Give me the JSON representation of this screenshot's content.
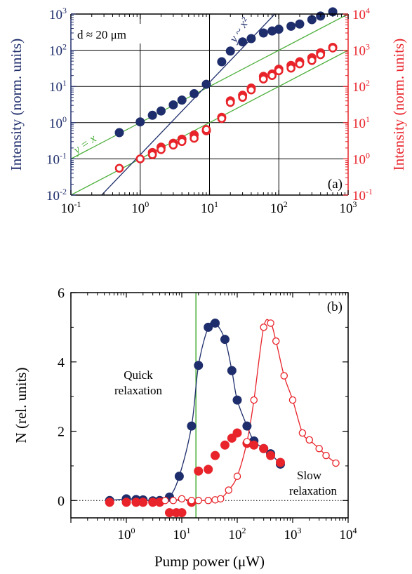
{
  "colors": {
    "navy": "#1e2d6b",
    "red": "#e8232a",
    "green": "#4caf3a",
    "axis_black": "#000000"
  },
  "chart_data": [
    {
      "id": "a",
      "type": "scatter",
      "panel_label": "(a)",
      "annotation": "d ≈ 20 μm",
      "x_scale": "log",
      "xlim": [
        0.1,
        1000
      ],
      "x_tick_labels": [
        [
          "10",
          "-1"
        ],
        [
          "10",
          "0"
        ],
        [
          "10",
          "1"
        ],
        [
          "10",
          "2"
        ],
        [
          "10",
          "3"
        ]
      ],
      "y_left": {
        "label": "Intensity (norm. units)",
        "scale": "log",
        "lim": [
          0.01,
          1000
        ],
        "tick_labels": [
          [
            "10",
            "-2"
          ],
          [
            "10",
            "-1"
          ],
          [
            "10",
            "0"
          ],
          [
            "10",
            "1"
          ],
          [
            "10",
            "2"
          ],
          [
            "10",
            "3"
          ]
        ],
        "color": "navy"
      },
      "y_right": {
        "label": "Intensity (norm. units)",
        "scale": "log",
        "lim": [
          0.1,
          10000
        ],
        "tick_labels": [
          [
            "10",
            "-1"
          ],
          [
            "10",
            "0"
          ],
          [
            "10",
            "1"
          ],
          [
            "10",
            "2"
          ],
          [
            "10",
            "3"
          ],
          [
            "10",
            "4"
          ]
        ],
        "color": "red"
      },
      "grid": true,
      "series": [
        {
          "axis": "left",
          "marker": "filled",
          "color": "navy",
          "x": [
            0.5,
            1,
            1.5,
            2,
            3,
            4,
            6,
            9,
            15,
            20,
            30,
            40,
            60,
            80,
            100,
            150,
            200,
            300,
            400,
            600
          ],
          "y": [
            0.53,
            1.05,
            1.6,
            2.1,
            3.1,
            4.2,
            6.3,
            11.5,
            48,
            95,
            170,
            210,
            300,
            340,
            380,
            460,
            530,
            700,
            880,
            1150
          ]
        },
        {
          "axis": "right",
          "marker": "filled",
          "color": "red",
          "x": [
            1.5,
            2,
            3,
            4,
            6,
            9,
            15,
            20,
            30,
            40,
            60,
            80,
            100,
            150,
            200,
            300,
            400,
            600
          ],
          "y": [
            1.5,
            2.1,
            2.7,
            3.5,
            4.6,
            6.0,
            14,
            40,
            57,
            90,
            190,
            220,
            300,
            380,
            480,
            620,
            850,
            1200
          ]
        },
        {
          "axis": "right",
          "marker": "open",
          "color": "red",
          "x": [
            0.5,
            1,
            1.5,
            2,
            3,
            4,
            6,
            9,
            15,
            20,
            30,
            40,
            60,
            80,
            100,
            150,
            200,
            300,
            400,
            600
          ],
          "y": [
            0.55,
            1.0,
            1.3,
            1.8,
            2.4,
            3.0,
            3.7,
            6.5,
            13,
            36,
            50,
            80,
            160,
            200,
            270,
            320,
            420,
            520,
            750,
            1150
          ]
        }
      ],
      "reference_lines": [
        {
          "label": "y = x",
          "color": "green",
          "axis": "left",
          "slope": 1,
          "offset": 1
        },
        {
          "label": "",
          "color": "green",
          "axis": "left",
          "slope": 1,
          "offset": 0.1
        },
        {
          "label": "y ~ x²",
          "color": "navy",
          "axis": "left",
          "slope": 2,
          "offset": 0.13
        }
      ]
    },
    {
      "id": "b",
      "type": "line",
      "panel_label": "(b)",
      "xlabel": "Pump power (μW)",
      "ylabel": "N (rel. units)",
      "x_scale": "log",
      "xlim": [
        0.1,
        10000
      ],
      "x_tick_labels": [
        [
          "10",
          "0"
        ],
        [
          "10",
          "1"
        ],
        [
          "10",
          "2"
        ],
        [
          "10",
          "3"
        ],
        [
          "10",
          "4"
        ]
      ],
      "ylim": [
        -0.5,
        6
      ],
      "y_tick_labels": [
        "0",
        "2",
        "4",
        "6"
      ],
      "vertical_line_x": 18,
      "annotations": [
        "Quick",
        "relaxation",
        "Slow",
        "relaxation"
      ],
      "series": [
        {
          "marker": "filled",
          "color": "navy",
          "x": [
            0.5,
            1,
            1.5,
            2,
            3,
            4,
            6,
            9,
            15,
            20,
            30,
            40,
            60,
            80,
            100,
            150,
            200,
            300,
            400,
            600
          ],
          "y": [
            0.0,
            0.05,
            0.03,
            0.02,
            -0.01,
            0.0,
            0.1,
            0.7,
            2.15,
            3.9,
            5.0,
            5.12,
            4.65,
            3.75,
            2.9,
            2.15,
            1.72,
            1.5,
            1.35,
            1.05
          ]
        },
        {
          "marker": "filled",
          "color": "red",
          "x": [
            0.5,
            1,
            1.5,
            2,
            3,
            4,
            6,
            8,
            10,
            15,
            20,
            30,
            40,
            60,
            80,
            100,
            150,
            200,
            300,
            400,
            600
          ],
          "y": [
            -0.05,
            -0.05,
            -0.05,
            -0.05,
            -0.05,
            -0.05,
            -0.35,
            -0.35,
            -0.35,
            -0.05,
            0.85,
            0.9,
            1.3,
            1.6,
            1.8,
            1.95,
            1.65,
            1.6,
            1.5,
            1.3,
            1.1
          ]
        },
        {
          "marker": "open",
          "color": "red",
          "x": [
            5,
            7,
            10,
            15,
            20,
            30,
            40,
            50,
            70,
            100,
            150,
            200,
            300,
            400,
            500,
            700,
            1000,
            1500,
            2000,
            3000,
            4000,
            6000
          ],
          "y": [
            0.0,
            0.0,
            0.05,
            0.0,
            0.0,
            0.0,
            0.02,
            0.05,
            0.3,
            0.7,
            1.7,
            2.9,
            5.0,
            5.12,
            4.6,
            3.6,
            2.9,
            1.95,
            1.75,
            1.5,
            1.3,
            1.08
          ]
        }
      ]
    }
  ]
}
